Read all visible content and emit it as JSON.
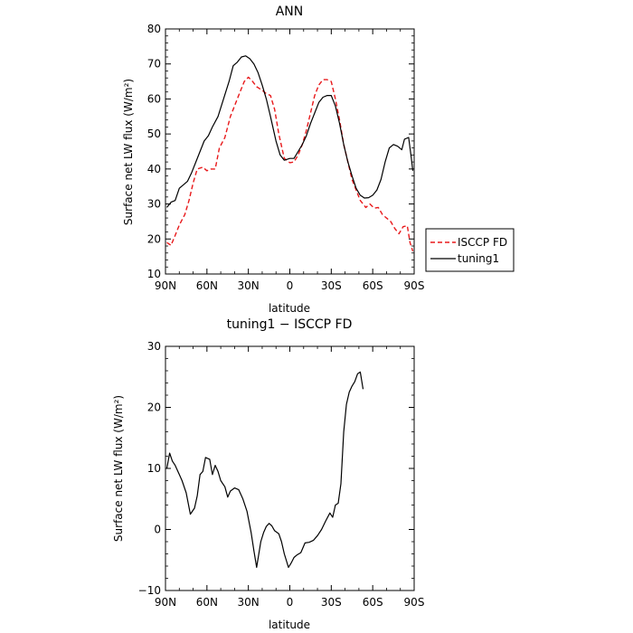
{
  "chart_data": [
    {
      "type": "line",
      "title": "ANN",
      "xlabel": "latitude",
      "ylabel": "Surface net LW flux (W/m²)",
      "xlim": [
        90,
        -90
      ],
      "ylim": [
        10,
        80
      ],
      "x_ticks": [
        90,
        60,
        30,
        0,
        -30,
        -60,
        -90
      ],
      "x_tick_labels": [
        "90N",
        "60N",
        "30N",
        "0",
        "30S",
        "60S",
        "90S"
      ],
      "y_ticks": [
        10,
        20,
        30,
        40,
        50,
        60,
        70,
        80
      ],
      "y_tick_labels": [
        "10",
        "20",
        "30",
        "40",
        "50",
        "60",
        "70",
        "80"
      ],
      "legend": "right",
      "series": [
        {
          "name": "ISCCP FD",
          "color": "#e8191b",
          "dash": "dashed",
          "points": [
            [
              89,
              19
            ],
            [
              86,
              18.2
            ],
            [
              83,
              21
            ],
            [
              80,
              24
            ],
            [
              76,
              27
            ],
            [
              73,
              31
            ],
            [
              70,
              36
            ],
            [
              67,
              40
            ],
            [
              63,
              40.5
            ],
            [
              60,
              39.5
            ],
            [
              57,
              40
            ],
            [
              54,
              40
            ],
            [
              51,
              46
            ],
            [
              47,
              49
            ],
            [
              43,
              55
            ],
            [
              38,
              60
            ],
            [
              33,
              65
            ],
            [
              30,
              66.2
            ],
            [
              27,
              65
            ],
            [
              24,
              63.5
            ],
            [
              20,
              62.5
            ],
            [
              17,
              61.5
            ],
            [
              14,
              61
            ],
            [
              11,
              57
            ],
            [
              8,
              50
            ],
            [
              4,
              43
            ],
            [
              0,
              41.8
            ],
            [
              -3,
              42
            ],
            [
              -6,
              44
            ],
            [
              -9,
              47
            ],
            [
              -12,
              51
            ],
            [
              -15,
              56
            ],
            [
              -18,
              61
            ],
            [
              -21,
              64
            ],
            [
              -24,
              65.5
            ],
            [
              -27,
              65.5
            ],
            [
              -30,
              65
            ],
            [
              -33,
              60
            ],
            [
              -36,
              54
            ],
            [
              -39,
              47
            ],
            [
              -42,
              42
            ],
            [
              -45,
              37
            ],
            [
              -48,
              34
            ],
            [
              -51,
              31
            ],
            [
              -55,
              29
            ],
            [
              -58,
              30
            ],
            [
              -61,
              28.8
            ],
            [
              -64,
              29
            ],
            [
              -67,
              27
            ],
            [
              -70,
              26
            ],
            [
              -73,
              25
            ],
            [
              -76,
              23
            ],
            [
              -79,
              21.5
            ],
            [
              -82,
              23.5
            ],
            [
              -85,
              23.8
            ],
            [
              -87,
              19
            ],
            [
              -89,
              16.5
            ]
          ]
        },
        {
          "name": "tuning1",
          "color": "#000000",
          "dash": "solid",
          "points": [
            [
              89,
              29
            ],
            [
              86,
              30.5
            ],
            [
              83,
              31
            ],
            [
              80,
              34.5
            ],
            [
              77,
              35.5
            ],
            [
              74,
              36.5
            ],
            [
              71,
              39
            ],
            [
              68,
              42
            ],
            [
              65,
              45
            ],
            [
              62,
              48
            ],
            [
              59,
              49.5
            ],
            [
              56,
              52
            ],
            [
              52,
              55
            ],
            [
              48,
              60
            ],
            [
              44,
              65
            ],
            [
              41,
              69.5
            ],
            [
              38,
              70.5
            ],
            [
              35,
              72
            ],
            [
              32,
              72.3
            ],
            [
              29,
              71.5
            ],
            [
              26,
              70
            ],
            [
              23,
              67.5
            ],
            [
              20,
              64
            ],
            [
              17,
              60
            ],
            [
              14,
              55
            ],
            [
              10,
              48
            ],
            [
              7,
              44
            ],
            [
              4,
              42.5
            ],
            [
              0,
              43
            ],
            [
              -3,
              43
            ],
            [
              -6,
              45
            ],
            [
              -9,
              47
            ],
            [
              -12,
              49.5
            ],
            [
              -15,
              53
            ],
            [
              -18,
              56
            ],
            [
              -21,
              59
            ],
            [
              -24,
              60.5
            ],
            [
              -27,
              61
            ],
            [
              -30,
              61
            ],
            [
              -33,
              58
            ],
            [
              -36,
              53
            ],
            [
              -39,
              47
            ],
            [
              -42,
              42
            ],
            [
              -45,
              38
            ],
            [
              -48,
              34.5
            ],
            [
              -51,
              32.5
            ],
            [
              -54,
              31.7
            ],
            [
              -57,
              31.8
            ],
            [
              -60,
              32.5
            ],
            [
              -63,
              34
            ],
            [
              -66,
              37
            ],
            [
              -69,
              42
            ],
            [
              -72,
              46
            ],
            [
              -75,
              47
            ],
            [
              -78,
              46.5
            ],
            [
              -81,
              45.5
            ],
            [
              -83,
              48.5
            ],
            [
              -86,
              49
            ],
            [
              -88,
              43
            ],
            [
              -89,
              39.5
            ]
          ]
        }
      ]
    },
    {
      "type": "line",
      "title": "tuning1 − ISCCP FD",
      "xlabel": "latitude",
      "ylabel": "Surface net LW flux (W/m²)",
      "xlim": [
        90,
        -90
      ],
      "ylim": [
        -10,
        30
      ],
      "x_ticks": [
        90,
        60,
        30,
        0,
        -30,
        -60,
        -90
      ],
      "x_tick_labels": [
        "90N",
        "60N",
        "30N",
        "0",
        "30S",
        "60S",
        "90S"
      ],
      "y_ticks": [
        -10,
        0,
        10,
        20,
        30
      ],
      "y_tick_labels": [
        "−10",
        "0",
        "10",
        "20",
        "30"
      ],
      "series": [
        {
          "color": "#000000",
          "dash": "solid",
          "points": [
            [
              89,
              10
            ],
            [
              87,
              12.5
            ],
            [
              85,
              11.2
            ],
            [
              83,
              10.5
            ],
            [
              80,
              9
            ],
            [
              78,
              8
            ],
            [
              75,
              6
            ],
            [
              72,
              2.5
            ],
            [
              69,
              3.5
            ],
            [
              67,
              5.5
            ],
            [
              65,
              9
            ],
            [
              63,
              9.5
            ],
            [
              61,
              11.8
            ],
            [
              58,
              11.5
            ],
            [
              56,
              9
            ],
            [
              54,
              10.5
            ],
            [
              52,
              9.5
            ],
            [
              50,
              8
            ],
            [
              47,
              7
            ],
            [
              45,
              5.3
            ],
            [
              43,
              6.3
            ],
            [
              40,
              6.8
            ],
            [
              37,
              6.5
            ],
            [
              34,
              5
            ],
            [
              31,
              3
            ],
            [
              28,
              -0.5
            ],
            [
              26,
              -3.5
            ],
            [
              24,
              -6.2
            ],
            [
              21,
              -2
            ],
            [
              19,
              -0.5
            ],
            [
              17,
              0.5
            ],
            [
              15,
              1
            ],
            [
              13,
              0.6
            ],
            [
              11,
              -0.2
            ],
            [
              8,
              -0.7
            ],
            [
              6,
              -2
            ],
            [
              4,
              -4
            ],
            [
              1,
              -6.2
            ],
            [
              -1,
              -5.5
            ],
            [
              -3,
              -4.6
            ],
            [
              -5,
              -4.2
            ],
            [
              -8,
              -3.8
            ],
            [
              -11,
              -2.2
            ],
            [
              -14,
              -2.1
            ],
            [
              -17,
              -1.8
            ],
            [
              -20,
              -1
            ],
            [
              -23,
              0
            ],
            [
              -26,
              1.4
            ],
            [
              -29,
              2.7
            ],
            [
              -31,
              2
            ],
            [
              -33,
              4
            ],
            [
              -35,
              4.3
            ],
            [
              -37,
              7.5
            ],
            [
              -39,
              16
            ],
            [
              -41,
              20.5
            ],
            [
              -43,
              22.5
            ],
            [
              -45,
              23.5
            ],
            [
              -47,
              24.2
            ],
            [
              -49,
              25.5
            ],
            [
              -51,
              25.8
            ],
            [
              -53,
              23
            ]
          ]
        }
      ]
    }
  ]
}
